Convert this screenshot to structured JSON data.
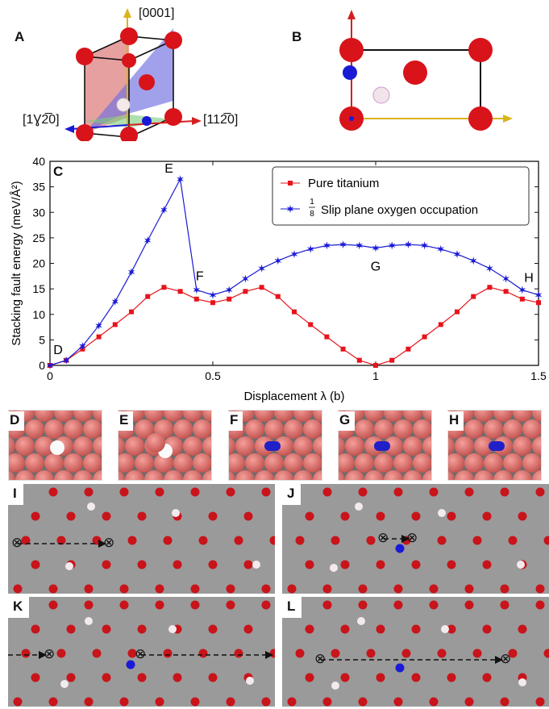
{
  "panel_labels": [
    "A",
    "B",
    "C",
    "D",
    "E",
    "F",
    "G",
    "H",
    "I",
    "J",
    "K",
    "L"
  ],
  "crystal": {
    "axis_top": "[0001]",
    "axis_left": "[1Ɣ2̅0]",
    "axis_right": "[112̅0]"
  },
  "chart_data": {
    "type": "line",
    "xlabel": "Displacement λ (b)",
    "ylabel": "Stacking fault energy (meV/Å²)",
    "xlim": [
      0,
      1.5
    ],
    "ylim": [
      0,
      40
    ],
    "xticks": [
      "0",
      "0.5",
      "1",
      "1.5"
    ],
    "yticks": [
      "0",
      "5",
      "10",
      "15",
      "20",
      "25",
      "30",
      "35",
      "40"
    ],
    "legend_position": "top-right",
    "series": [
      {
        "name": "Pure titanium",
        "color": "#e8131b",
        "marker": "square",
        "x": [
          0,
          0.05,
          0.1,
          0.15,
          0.2,
          0.25,
          0.3,
          0.35,
          0.4,
          0.45,
          0.5,
          0.55,
          0.6,
          0.65,
          0.7,
          0.75,
          0.8,
          0.85,
          0.9,
          0.95,
          1.0,
          1.05,
          1.1,
          1.15,
          1.2,
          1.25,
          1.3,
          1.35,
          1.4,
          1.45,
          1.5
        ],
        "values": [
          0,
          1,
          3.2,
          5.6,
          8,
          10.5,
          13.5,
          15.3,
          14.5,
          13,
          12.3,
          13,
          14.5,
          15.3,
          13.5,
          10.5,
          8,
          5.6,
          3.2,
          1,
          0,
          1,
          3.2,
          5.6,
          8,
          10.5,
          13.5,
          15.3,
          14.5,
          13,
          12.3
        ]
      },
      {
        "name": "1/8 Slip plane oxygen occupation",
        "color": "#1a1ad6",
        "marker": "star",
        "x": [
          0,
          0.05,
          0.1,
          0.15,
          0.2,
          0.25,
          0.3,
          0.35,
          0.4,
          0.45,
          0.5,
          0.55,
          0.6,
          0.65,
          0.7,
          0.75,
          0.8,
          0.85,
          0.9,
          0.95,
          1.0,
          1.05,
          1.1,
          1.15,
          1.2,
          1.25,
          1.3,
          1.35,
          1.4,
          1.45,
          1.5
        ],
        "values": [
          0,
          1,
          3.8,
          7.8,
          12.5,
          18.3,
          24.5,
          30.5,
          36.5,
          14.8,
          13.8,
          14.8,
          17,
          19,
          20.5,
          21.8,
          22.8,
          23.5,
          23.7,
          23.5,
          23,
          23.5,
          23.7,
          23.5,
          22.8,
          21.8,
          20.5,
          19,
          17,
          14.8,
          13.8
        ]
      }
    ],
    "legend_fraction_numerator": "1",
    "legend_fraction_denominator": "8",
    "legend_fraction_text": "Slip plane oxygen occupation",
    "annotations": [
      {
        "text": "D",
        "x": 0,
        "y": 0
      },
      {
        "text": "E",
        "x": 0.4,
        "y": 36.5
      },
      {
        "text": "F",
        "x": 0.45,
        "y": 14.8
      },
      {
        "text": "G",
        "x": 1.0,
        "y": 23
      },
      {
        "text": "H",
        "x": 1.5,
        "y": 13.8
      }
    ]
  },
  "colors": {
    "titanium": "#e0141a",
    "oxygen": "#1a1ad6",
    "vacancy": "#ffffff",
    "background_gray": "#9a9a9a"
  },
  "symbols": {
    "dislocation": "⊗"
  }
}
